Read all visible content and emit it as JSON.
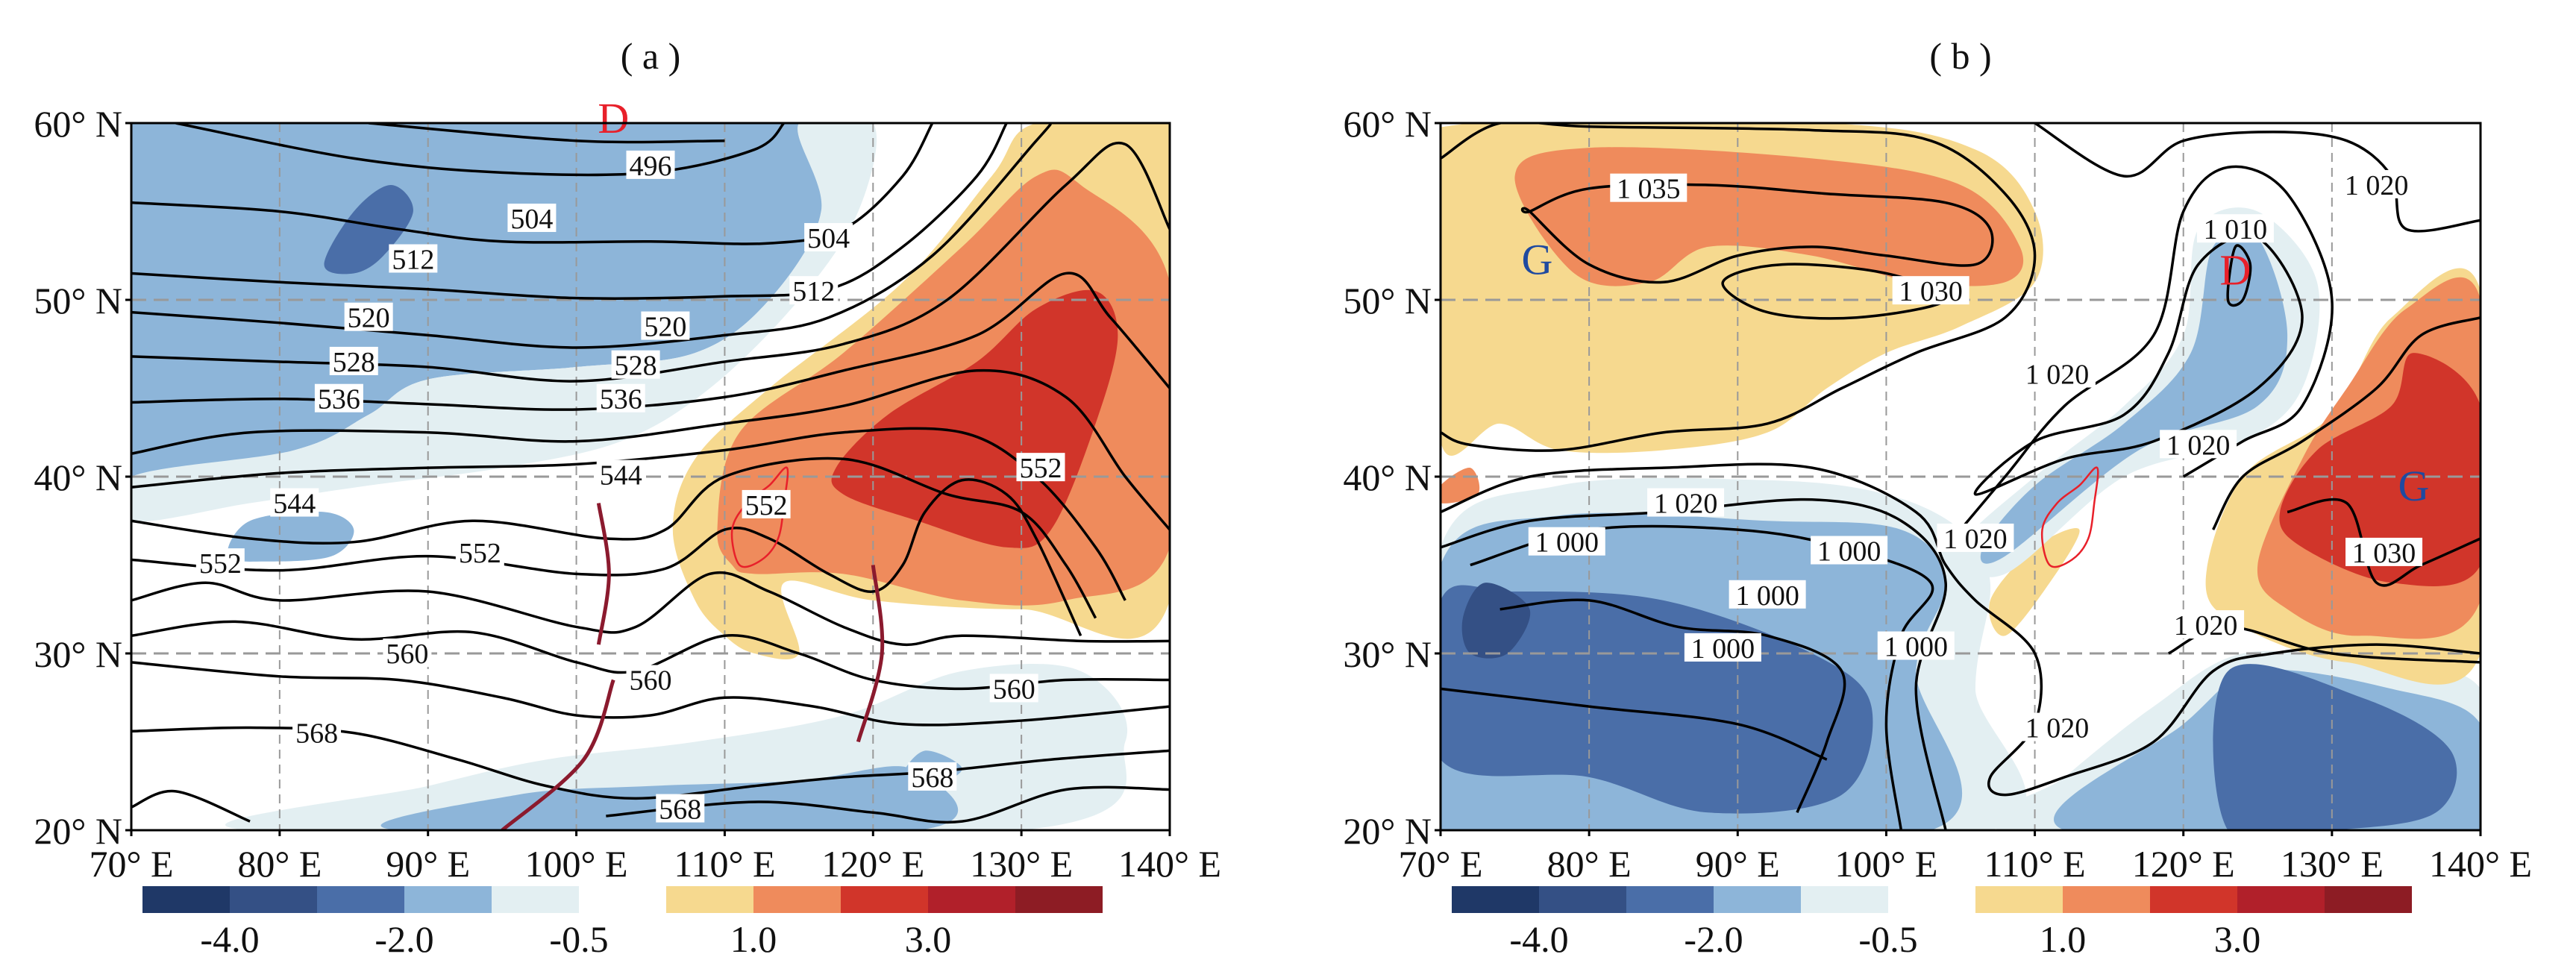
{
  "panels": [
    {
      "id": "a",
      "title": "( a )",
      "xticks": [
        "70° E",
        "80° E",
        "90° E",
        "100° E",
        "110° E",
        "120° E",
        "130° E",
        "140° E"
      ],
      "yticks": [
        "60° N",
        "50° N",
        "40° N",
        "30° N",
        "20° N"
      ],
      "lon_range": [
        70,
        140
      ],
      "lat_range": [
        20,
        60
      ],
      "gridlines": true,
      "contour_labels": [
        {
          "text": "496",
          "lon": 105,
          "lat": 57.6
        },
        {
          "text": "504",
          "lon": 97,
          "lat": 54.6
        },
        {
          "text": "504",
          "lon": 117,
          "lat": 53.5
        },
        {
          "text": "512",
          "lon": 89,
          "lat": 52.3
        },
        {
          "text": "512",
          "lon": 116,
          "lat": 50.5
        },
        {
          "text": "520",
          "lon": 86,
          "lat": 49
        },
        {
          "text": "520",
          "lon": 106,
          "lat": 48.5
        },
        {
          "text": "528",
          "lon": 85,
          "lat": 46.5
        },
        {
          "text": "528",
          "lon": 104,
          "lat": 46.3
        },
        {
          "text": "536",
          "lon": 84,
          "lat": 44.4
        },
        {
          "text": "536",
          "lon": 103,
          "lat": 44.4
        },
        {
          "text": "544",
          "lon": 103,
          "lat": 40.1
        },
        {
          "text": "544",
          "lon": 81,
          "lat": 38.5
        },
        {
          "text": "552",
          "lon": 112.8,
          "lat": 38.4
        },
        {
          "text": "552",
          "lon": 131.3,
          "lat": 40.5
        },
        {
          "text": "552",
          "lon": 93.5,
          "lat": 35.7
        },
        {
          "text": "552",
          "lon": 76,
          "lat": 35.1
        },
        {
          "text": "560",
          "lon": 88.6,
          "lat": 30
        },
        {
          "text": "560",
          "lon": 105,
          "lat": 28.5
        },
        {
          "text": "560",
          "lon": 129.5,
          "lat": 28
        },
        {
          "text": "568",
          "lon": 82.5,
          "lat": 25.5
        },
        {
          "text": "568",
          "lon": 124,
          "lat": 23
        },
        {
          "text": "568",
          "lon": 107,
          "lat": 21.2
        }
      ],
      "markers": [
        {
          "text": "D",
          "lon": 102.5,
          "lat": 60.3,
          "color": "#e8202a"
        }
      ]
    },
    {
      "id": "b",
      "title": "( b )",
      "xticks": [
        "70° E",
        "80° E",
        "90° E",
        "100° E",
        "110° E",
        "120° E",
        "130° E",
        "140° E"
      ],
      "yticks": [
        "60° N",
        "50° N",
        "40° N",
        "30° N",
        "20° N"
      ],
      "lon_range": [
        70,
        140
      ],
      "lat_range": [
        20,
        60
      ],
      "gridlines": true,
      "contour_labels": [
        {
          "text": "1 035",
          "lon": 84,
          "lat": 56.3
        },
        {
          "text": "1 030",
          "lon": 103,
          "lat": 50.5
        },
        {
          "text": "1 020",
          "lon": 111.5,
          "lat": 45.8
        },
        {
          "text": "1 020",
          "lon": 121,
          "lat": 41.8
        },
        {
          "text": "1 020",
          "lon": 86.5,
          "lat": 38.5
        },
        {
          "text": "1 020",
          "lon": 106,
          "lat": 36.5
        },
        {
          "text": "1 000",
          "lon": 78.5,
          "lat": 36.3
        },
        {
          "text": "1 000",
          "lon": 97.5,
          "lat": 35.8
        },
        {
          "text": "1 000",
          "lon": 92,
          "lat": 33.3
        },
        {
          "text": "1 000",
          "lon": 89,
          "lat": 30.3
        },
        {
          "text": "1 000",
          "lon": 102,
          "lat": 30.4
        },
        {
          "text": "1 010",
          "lon": 123.5,
          "lat": 54
        },
        {
          "text": "1 020",
          "lon": 133,
          "lat": 56.5
        },
        {
          "text": "1 030",
          "lon": 133.5,
          "lat": 35.7
        },
        {
          "text": "1 020",
          "lon": 121.5,
          "lat": 31.6
        },
        {
          "text": "1 020",
          "lon": 111.5,
          "lat": 25.8
        }
      ],
      "markers": [
        {
          "text": "D",
          "lon": 123.5,
          "lat": 51.7,
          "color": "#e8202a"
        },
        {
          "text": "G",
          "lon": 76.5,
          "lat": 52.3,
          "color": "#1f4aa0"
        },
        {
          "text": "G",
          "lon": 135.5,
          "lat": 39.5,
          "color": "#1f4aa0"
        }
      ]
    }
  ],
  "colorbar": {
    "colors": [
      "#1f3867",
      "#345085",
      "#4a6ea8",
      "#8db5d9",
      "#e3eff2",
      "#f6d98f",
      "#ef8b5c",
      "#d1352a",
      "#b1202a",
      "#8d1c24"
    ],
    "labels_negative": [
      "-4.0",
      "-2.0",
      "-0.5"
    ],
    "labels_positive": [
      "1.0",
      "3.0"
    ]
  }
}
